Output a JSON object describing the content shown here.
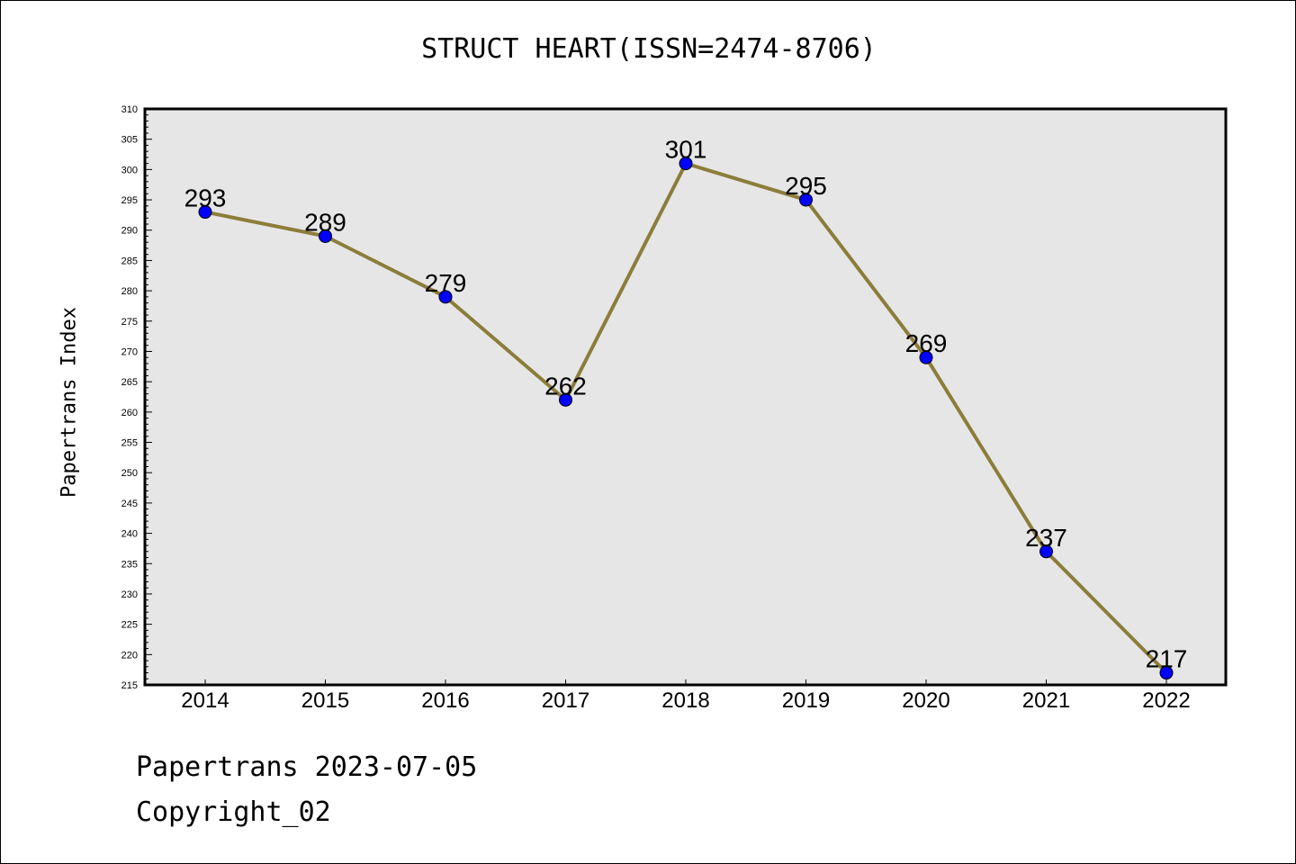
{
  "footer": {
    "date_line": "Papertrans 2023-07-05",
    "copyright": "Copyright_02"
  },
  "colors": {
    "line": "#8B7D3A",
    "marker": "#0000FF",
    "plot_background": "#E6E6E6"
  },
  "chart_data": {
    "type": "line",
    "title": "STRUCT HEART(ISSN=2474-8706)",
    "xlabel": "",
    "ylabel": "Papertrans Index",
    "categories": [
      "2014",
      "2015",
      "2016",
      "2017",
      "2018",
      "2019",
      "2020",
      "2021",
      "2022"
    ],
    "series": [
      {
        "values": [
          293,
          289,
          279,
          262,
          301,
          295,
          269,
          237,
          217
        ]
      }
    ],
    "ylim": [
      215,
      310
    ],
    "y_major_step": 5,
    "y_minor_step": 1,
    "grid": false,
    "legend": "none",
    "data_labels": true
  }
}
